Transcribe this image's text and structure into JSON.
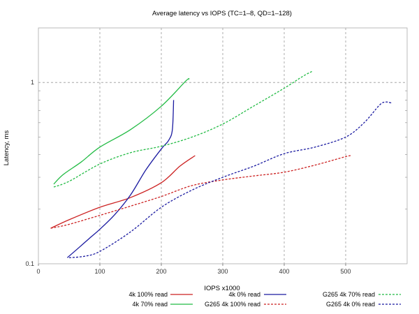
{
  "chart_data": {
    "type": "line",
    "title": "Average latency vs IOPS (TC=1–8, QD=1–128)",
    "xlabel": "IOPS x1000",
    "ylabel": "Latency, ms",
    "xlim": [
      0,
      600
    ],
    "ylim": [
      0.1,
      2
    ],
    "yscale": "log",
    "grid": true,
    "xticks": [
      0,
      100,
      200,
      300,
      400,
      500
    ],
    "xtick_labels": [
      "0",
      "100",
      "200",
      "300",
      "400",
      "500"
    ],
    "yticks": [
      0.1,
      1
    ],
    "ytick_labels": [
      "0.1",
      "1"
    ],
    "legend_position": "bottom",
    "series": [
      {
        "name": "4k 100% read",
        "color": "#cc2222",
        "dash": "solid",
        "x": [
          20,
          50,
          100,
          150,
          200,
          230,
          255
        ],
        "y": [
          0.157,
          0.175,
          0.205,
          0.232,
          0.28,
          0.345,
          0.395
        ]
      },
      {
        "name": "4k 70% read",
        "color": "#22bb44",
        "dash": "solid",
        "x": [
          25,
          40,
          70,
          100,
          150,
          200,
          240,
          245
        ],
        "y": [
          0.275,
          0.31,
          0.365,
          0.44,
          0.55,
          0.74,
          1.02,
          1.04
        ]
      },
      {
        "name": "4k 0% read",
        "color": "#1a1aa0",
        "dash": "solid",
        "x": [
          47,
          65,
          85,
          100,
          125,
          150,
          175,
          200,
          212,
          218,
          220
        ],
        "y": [
          0.108,
          0.122,
          0.14,
          0.155,
          0.188,
          0.24,
          0.33,
          0.43,
          0.48,
          0.55,
          0.8
        ]
      },
      {
        "name": "G265 4k 100% read",
        "color": "#cc2222",
        "dash": "dashed",
        "x": [
          20,
          50,
          100,
          150,
          200,
          250,
          300,
          350,
          400,
          450,
          500,
          510
        ],
        "y": [
          0.157,
          0.165,
          0.185,
          0.208,
          0.235,
          0.27,
          0.29,
          0.305,
          0.32,
          0.35,
          0.39,
          0.395
        ]
      },
      {
        "name": "G265 4k 70% read",
        "color": "#22bb44",
        "dash": "dashed",
        "x": [
          25,
          50,
          100,
          150,
          200,
          250,
          300,
          350,
          400,
          430,
          445
        ],
        "y": [
          0.265,
          0.285,
          0.355,
          0.41,
          0.445,
          0.5,
          0.59,
          0.74,
          0.93,
          1.08,
          1.15
        ]
      },
      {
        "name": "G265 4k 0% read",
        "color": "#1a1aa0",
        "dash": "dashed",
        "x": [
          50,
          75,
          100,
          150,
          200,
          250,
          300,
          350,
          400,
          450,
          500,
          530,
          555,
          565,
          575
        ],
        "y": [
          0.108,
          0.11,
          0.117,
          0.15,
          0.205,
          0.255,
          0.3,
          0.345,
          0.405,
          0.44,
          0.5,
          0.6,
          0.75,
          0.78,
          0.77
        ]
      }
    ]
  }
}
